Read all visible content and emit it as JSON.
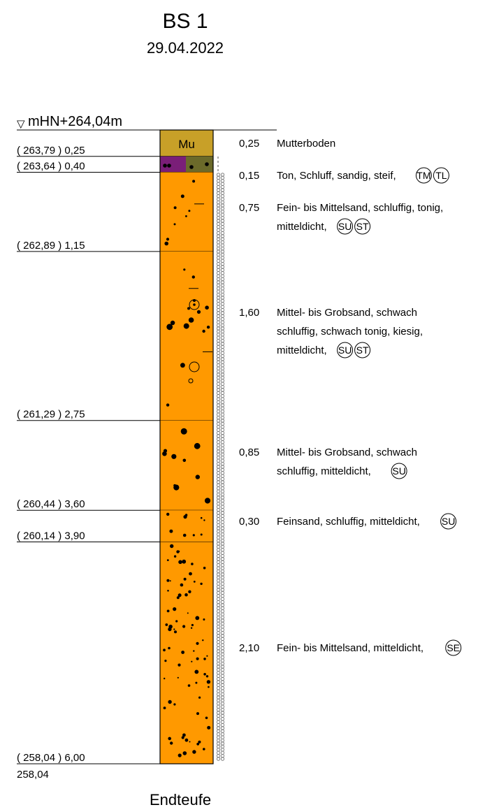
{
  "header": {
    "title": "BS 1",
    "date": "29.04.2022"
  },
  "top": {
    "symbol": "▽",
    "label": "mHN+264,04m"
  },
  "layers": [
    {
      "from": 0.0,
      "to": 0.25,
      "elev_label": "( 263,79 ) 0,25",
      "thickness": "0,25",
      "desc": [
        "Mutterboden"
      ],
      "codes": [],
      "fill": "#C8A028",
      "code_label": "Mu"
    },
    {
      "from": 0.25,
      "to": 0.4,
      "elev_label": "( 263,64 ) 0,40",
      "thickness": "0,15",
      "desc": [
        "Ton, Schluff, sandig, steif,"
      ],
      "codes": [
        "TM",
        "TL"
      ],
      "fill": "#7A1E78",
      "fill2": "#6B6A2A"
    },
    {
      "from": 0.4,
      "to": 1.15,
      "elev_label": "( 262,89 ) 1,15",
      "thickness": "0,75",
      "desc": [
        "Fein- bis Mittelsand, schluffig, tonig,",
        "mitteldicht,"
      ],
      "codes": [
        "SU",
        "ST"
      ],
      "fill": "#FF9900"
    },
    {
      "from": 1.15,
      "to": 2.75,
      "elev_label": "( 261,29 ) 2,75",
      "thickness": "1,60",
      "desc": [
        "Mittel- bis Grobsand, schwach",
        "schluffig, schwach tonig, kiesig,",
        "mitteldicht,"
      ],
      "codes": [
        "SU",
        "ST"
      ],
      "fill": "#FF9900"
    },
    {
      "from": 2.75,
      "to": 3.6,
      "elev_label": "( 260,44 ) 3,60",
      "thickness": "0,85",
      "desc": [
        "Mittel- bis Grobsand, schwach",
        "schluffig, mitteldicht,"
      ],
      "codes": [
        "SU"
      ],
      "fill": "#FF9900"
    },
    {
      "from": 3.6,
      "to": 3.9,
      "elev_label": "( 260,14 ) 3,90",
      "thickness": "0,30",
      "desc": [
        "Feinsand, schluffig, mitteldicht,"
      ],
      "codes": [
        "SU"
      ],
      "fill": "#FF9900"
    },
    {
      "from": 3.9,
      "to": 6.0,
      "elev_label": "( 258,04 ) 6,00",
      "thickness": "2,10",
      "desc": [
        "Fein- bis Mittelsand, mitteldicht,"
      ],
      "codes": [
        "SE"
      ],
      "fill": "#FF9900"
    }
  ],
  "bottom_elev": "258,04",
  "end_label": "Endteufe"
}
